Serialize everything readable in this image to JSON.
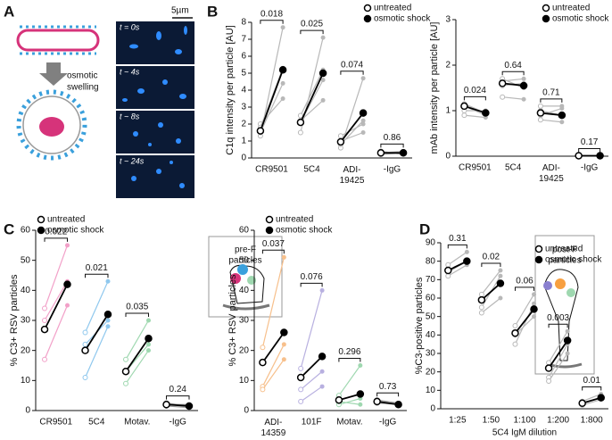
{
  "figure": {
    "panel_labels": [
      "A",
      "B",
      "C",
      "D"
    ],
    "panel_a": {
      "process_label": [
        "osmotic",
        "swelling"
      ],
      "scale_bar": "5µm",
      "time_labels": [
        "t = 0s",
        "t ~ 4s",
        "t ~ 8s",
        "t ~ 24s"
      ]
    }
  },
  "chart_data": [
    {
      "type": "paired",
      "y_label": "C1q intensity per particle [AU]",
      "categories": [
        "CR9501",
        "5C4",
        "ADI-\n19425",
        "-IgG"
      ],
      "series": [
        {
          "name": "untreated",
          "fill": "#ffffff",
          "values": [
            1.6,
            2.1,
            0.95,
            0.3
          ]
        },
        {
          "name": "osmotic shock",
          "fill": "#000000",
          "values": [
            5.2,
            5.0,
            2.65,
            0.3
          ]
        }
      ],
      "replicates": [
        [
          [
            1.3,
            7.7
          ],
          [
            1.5,
            4.4
          ],
          [
            2.0,
            3.5
          ],
          [
            1.8,
            5.3
          ]
        ],
        [
          [
            1.5,
            7.1
          ],
          [
            2.1,
            4.6
          ],
          [
            2.2,
            3.4
          ],
          [
            2.5,
            5.2
          ]
        ],
        [
          [
            0.6,
            4.7
          ],
          [
            0.8,
            2.2
          ],
          [
            1.0,
            1.5
          ],
          [
            1.3,
            2.0
          ]
        ],
        [
          [
            0.2,
            0.3
          ],
          [
            0.3,
            0.4
          ],
          [
            0.4,
            0.2
          ]
        ]
      ],
      "replicate_color": "#b8b8b8",
      "line_color": "#000000",
      "annotations": [
        "0.018",
        "0.025",
        "0.074",
        "0.86"
      ],
      "ylim": [
        0,
        8
      ],
      "yticks": [
        0,
        1,
        2,
        3,
        4,
        5,
        6,
        7,
        8
      ]
    },
    {
      "type": "paired",
      "y_label": "mAb intensity per particle [AU]",
      "categories": [
        "CR9501",
        "5C4",
        "ADI-\n19425",
        "-IgG"
      ],
      "series": [
        {
          "name": "untreated",
          "fill": "#ffffff",
          "values": [
            1.1,
            1.6,
            0.95,
            0.01
          ]
        },
        {
          "name": "osmotic shock",
          "fill": "#000000",
          "values": [
            0.95,
            1.55,
            0.9,
            0.01
          ]
        }
      ],
      "replicates": [
        [
          [
            1.15,
            0.95
          ],
          [
            1.0,
            1.0
          ],
          [
            0.9,
            0.85
          ],
          [
            1.1,
            0.9
          ]
        ],
        [
          [
            1.65,
            1.7
          ],
          [
            1.55,
            1.6
          ],
          [
            1.3,
            1.25
          ],
          [
            1.7,
            1.5
          ]
        ],
        [
          [
            1.1,
            1.1
          ],
          [
            0.9,
            1.05
          ],
          [
            0.8,
            0.75
          ],
          [
            1.0,
            0.9
          ]
        ],
        [
          [
            0.01,
            0.01
          ]
        ]
      ],
      "replicate_color": "#b8b8b8",
      "line_color": "#000000",
      "annotations": [
        "0.024",
        "0.64",
        "0.71",
        "0.17"
      ],
      "ylim": [
        0,
        3
      ],
      "yticks": [
        0,
        1,
        2,
        3
      ]
    },
    {
      "type": "paired",
      "y_label": "% C3+ RSV particles",
      "inset_label": [
        "pre-F",
        "particles"
      ],
      "categories": [
        "CR9501",
        "5C4",
        "Motav.",
        "-IgG"
      ],
      "series": [
        {
          "name": "untreated",
          "fill": "#ffffff",
          "values": [
            27,
            20,
            13,
            2
          ]
        },
        {
          "name": "osmotic shock",
          "fill": "#000000",
          "values": [
            42,
            32,
            24,
            1.5
          ]
        }
      ],
      "replicates": [
        [
          [
            34,
            55
          ],
          [
            17,
            35
          ],
          [
            30,
            43
          ]
        ],
        [
          [
            26,
            43
          ],
          [
            11,
            28
          ],
          [
            22,
            30
          ]
        ],
        [
          [
            17,
            30
          ],
          [
            9,
            20
          ],
          [
            13,
            22
          ]
        ],
        [
          [
            2,
            2
          ],
          [
            1.5,
            1
          ],
          [
            2.5,
            1.5
          ]
        ]
      ],
      "category_colors": [
        "#f2a0c8",
        "#8fc8ee",
        "#9fd8b0",
        "#9a9a9a"
      ],
      "line_color": "#000000",
      "annotations": [
        "0.022",
        "0.021",
        "0.035",
        "0.24"
      ],
      "ylim": [
        0,
        60
      ],
      "yticks": [
        0,
        10,
        20,
        30,
        40,
        50,
        60
      ]
    },
    {
      "type": "paired",
      "y_label": "% C3+ RSV particles",
      "inset_label": [
        "post-F",
        "particles"
      ],
      "categories": [
        "ADI-\n14359",
        "101F",
        "Motav.",
        "-IgG"
      ],
      "series": [
        {
          "name": "untreated",
          "fill": "#ffffff",
          "values": [
            16,
            11,
            3.5,
            3
          ]
        },
        {
          "name": "osmotic shock",
          "fill": "#000000",
          "values": [
            26,
            18,
            5.5,
            2
          ]
        }
      ],
      "replicates": [
        [
          [
            21,
            51
          ],
          [
            8,
            22
          ],
          [
            7,
            17
          ]
        ],
        [
          [
            14,
            40
          ],
          [
            7,
            13
          ],
          [
            3,
            8
          ]
        ],
        [
          [
            5,
            15
          ],
          [
            2,
            4
          ],
          [
            3,
            2
          ]
        ],
        [
          [
            3,
            2
          ],
          [
            2.5,
            2
          ],
          [
            3.5,
            2.5
          ]
        ]
      ],
      "category_colors": [
        "#f7c08c",
        "#b8b0e0",
        "#9fd8b0",
        "#9a9a9a"
      ],
      "line_color": "#000000",
      "annotations": [
        "0.037",
        "0.076",
        "0.296",
        "0.73"
      ],
      "ylim": [
        0,
        60
      ],
      "yticks": [
        0,
        10,
        20,
        30,
        40,
        50,
        60
      ]
    },
    {
      "type": "paired",
      "y_label": "%C3-positive particles",
      "x_label": "5C4 IgM dilution",
      "categories": [
        "1:25",
        "1:50",
        "1:100",
        "1:200",
        "1:800"
      ],
      "series": [
        {
          "name": "untreated",
          "fill": "#ffffff",
          "values": [
            75,
            59,
            41,
            22,
            3
          ]
        },
        {
          "name": "osmotic shock",
          "fill": "#000000",
          "values": [
            80,
            68,
            54,
            37,
            6
          ]
        }
      ],
      "replicates": [
        [
          [
            74,
            80
          ],
          [
            78,
            85
          ],
          [
            72,
            78
          ]
        ],
        [
          [
            55,
            72
          ],
          [
            62,
            75
          ],
          [
            52,
            60
          ]
        ],
        [
          [
            35,
            57
          ],
          [
            45,
            62
          ],
          [
            40,
            50
          ]
        ],
        [
          [
            17,
            35
          ],
          [
            25,
            42
          ],
          [
            15,
            30
          ]
        ],
        [
          [
            2,
            5
          ],
          [
            4,
            8
          ]
        ]
      ],
      "replicate_color": "#b8b8b8",
      "line_color": "#000000",
      "annotations": [
        "0.31",
        "0.02",
        "0.06",
        "0.003",
        "0.01"
      ],
      "ylim": [
        0,
        90
      ],
      "yticks": [
        0,
        10,
        20,
        30,
        40,
        50,
        60,
        70,
        80,
        90
      ]
    }
  ]
}
